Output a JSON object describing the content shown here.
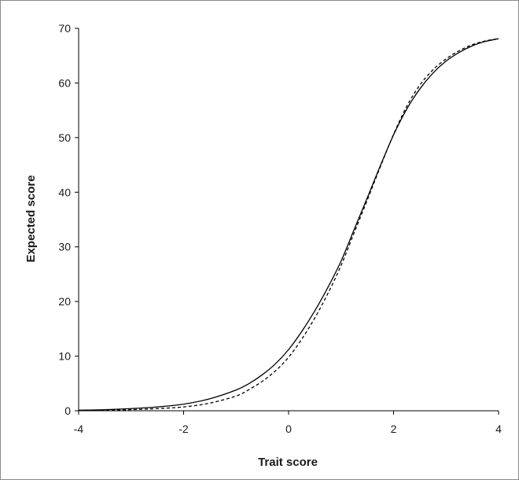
{
  "chart_data": {
    "type": "line",
    "title": "",
    "xlabel": "Trait score",
    "ylabel": "Expected score",
    "xlim": [
      -4,
      4
    ],
    "ylim": [
      0,
      70
    ],
    "grid": false,
    "legend": "none",
    "x_ticks": [
      -4,
      -2,
      0,
      2,
      4
    ],
    "y_ticks": [
      0,
      10,
      20,
      30,
      40,
      50,
      60,
      70
    ],
    "x_tick_labels": [
      "-4",
      "-2",
      "0",
      "2",
      "4"
    ],
    "y_tick_labels": [
      "0",
      "10",
      "20",
      "30",
      "40",
      "50",
      "60",
      "70"
    ],
    "series": [
      {
        "style": "solid",
        "color": "#000000",
        "x": [
          -4,
          -3.5,
          -3,
          -2.5,
          -2,
          -1.5,
          -1,
          -0.75,
          -0.5,
          -0.25,
          0,
          0.25,
          0.5,
          0.75,
          1,
          1.25,
          1.5,
          1.75,
          2,
          2.25,
          2.5,
          2.75,
          3,
          3.25,
          3.5,
          3.75,
          4
        ],
        "y": [
          0.1,
          0.2,
          0.4,
          0.7,
          1.2,
          2.2,
          3.8,
          5.0,
          6.6,
          8.6,
          11.2,
          14.5,
          18.3,
          22.6,
          27.4,
          33.2,
          39.0,
          44.9,
          50.5,
          55.2,
          58.9,
          61.8,
          64.0,
          65.6,
          66.8,
          67.6,
          68.1
        ]
      },
      {
        "style": "dashed",
        "color": "#000000",
        "x": [
          -4,
          -3.5,
          -3,
          -2.5,
          -2,
          -1.5,
          -1,
          -0.75,
          -0.5,
          -0.25,
          0,
          0.25,
          0.5,
          0.75,
          1,
          1.25,
          1.5,
          1.75,
          2,
          2.25,
          2.5,
          2.75,
          3,
          3.25,
          3.5,
          3.75,
          4
        ],
        "y": [
          0.05,
          0.1,
          0.2,
          0.4,
          0.7,
          1.4,
          2.7,
          3.9,
          5.4,
          7.3,
          9.8,
          13.1,
          17.0,
          21.5,
          26.6,
          32.6,
          38.6,
          44.7,
          50.6,
          55.7,
          59.6,
          62.4,
          64.4,
          65.9,
          67.0,
          67.7,
          68.1
        ]
      }
    ]
  }
}
